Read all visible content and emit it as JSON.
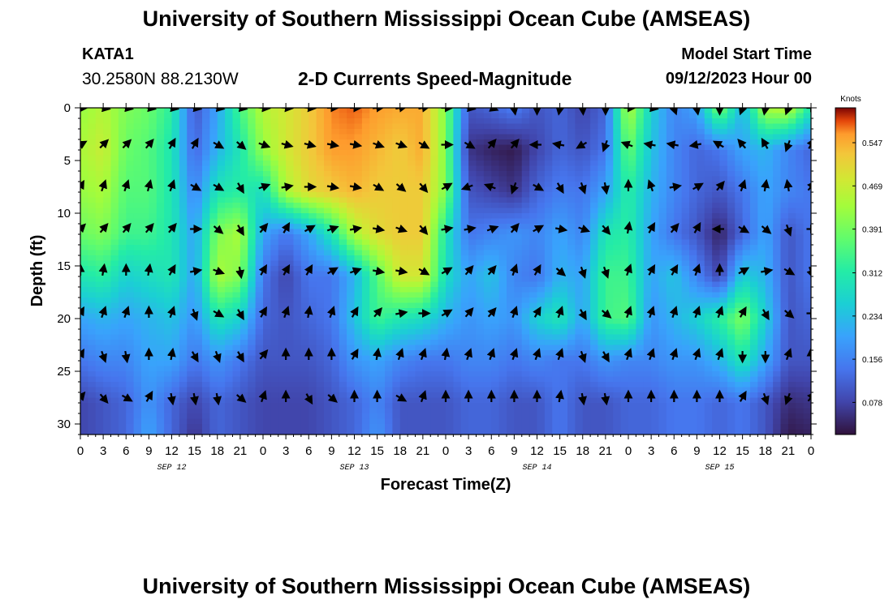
{
  "header": {
    "title": "University of Southern Mississippi Ocean Cube (AMSEAS)",
    "station_id": "KATA1",
    "station_coords": "30.2580N  88.2130W",
    "plot_title": "2-D Currents Speed-Magnitude",
    "model_start_label": "Model Start Time",
    "model_start_time": "09/12/2023 Hour 00"
  },
  "footer": {
    "title": "University of Southern Mississippi Ocean Cube (AMSEAS)"
  },
  "chart_data": {
    "type": "heatmap",
    "title": "2-D Currents Speed-Magnitude",
    "xlabel": "Forecast Time(Z)",
    "ylabel": "Depth (ft)",
    "xlim": [
      0,
      96
    ],
    "ylim": [
      0,
      31
    ],
    "x_tick_values": [
      0,
      3,
      6,
      9,
      12,
      15,
      18,
      21,
      24,
      27,
      30,
      33,
      36,
      39,
      42,
      45,
      48,
      51,
      54,
      57,
      60,
      63,
      66,
      69,
      72,
      75,
      78,
      81,
      84,
      87,
      90,
      93,
      96
    ],
    "x_tick_labels": [
      "0",
      "3",
      "6",
      "9",
      "12",
      "15",
      "18",
      "21",
      "0",
      "3",
      "6",
      "9",
      "12",
      "15",
      "18",
      "21",
      "0",
      "3",
      "6",
      "9",
      "12",
      "15",
      "18",
      "21",
      "0",
      "3",
      "6",
      "9",
      "12",
      "15",
      "18",
      "21",
      "0"
    ],
    "date_labels": [
      {
        "label": "SEP 12",
        "x": 12
      },
      {
        "label": "SEP 13",
        "x": 36
      },
      {
        "label": "SEP 14",
        "x": 60
      },
      {
        "label": "SEP 15",
        "x": 84
      }
    ],
    "y_ticks": [
      0,
      5,
      10,
      15,
      20,
      25,
      30
    ],
    "colorbar": {
      "label": "Knots",
      "range": [
        0.02,
        0.61
      ],
      "ticks": [
        0.078,
        0.156,
        0.234,
        0.312,
        0.391,
        0.469,
        0.547
      ],
      "tick_labels": [
        "0.078",
        "0.156",
        "0.234",
        "0.312",
        "0.391",
        "0.469",
        "0.547"
      ]
    },
    "grid_times": [
      0,
      3,
      6,
      9,
      12,
      15,
      18,
      21,
      24,
      27,
      30,
      33,
      36,
      39,
      42,
      45,
      48,
      51,
      54,
      57,
      60,
      63,
      66,
      69,
      72,
      75,
      78,
      81,
      84,
      87,
      90,
      93,
      96
    ],
    "grid_depths": [
      0,
      4,
      8,
      12,
      16,
      20,
      24,
      28,
      31
    ],
    "speed_knots": [
      [
        0.42,
        0.45,
        0.4,
        0.38,
        0.32,
        0.1,
        0.2,
        0.35,
        0.45,
        0.48,
        0.52,
        0.57,
        0.58,
        0.56,
        0.55,
        0.55,
        0.4,
        0.1,
        0.12,
        0.15,
        0.1,
        0.12,
        0.08,
        0.12,
        0.45,
        0.26,
        0.16,
        0.2,
        0.4,
        0.22,
        0.44,
        0.46,
        0.3
      ],
      [
        0.44,
        0.47,
        0.38,
        0.36,
        0.3,
        0.12,
        0.22,
        0.3,
        0.42,
        0.48,
        0.52,
        0.56,
        0.56,
        0.54,
        0.52,
        0.55,
        0.4,
        0.06,
        0.04,
        0.03,
        0.08,
        0.12,
        0.1,
        0.14,
        0.38,
        0.24,
        0.16,
        0.12,
        0.14,
        0.2,
        0.22,
        0.16,
        0.12
      ],
      [
        0.42,
        0.44,
        0.36,
        0.36,
        0.3,
        0.16,
        0.3,
        0.32,
        0.28,
        0.44,
        0.5,
        0.52,
        0.54,
        0.52,
        0.52,
        0.52,
        0.4,
        0.1,
        0.08,
        0.06,
        0.12,
        0.15,
        0.14,
        0.2,
        0.32,
        0.22,
        0.16,
        0.12,
        0.1,
        0.14,
        0.2,
        0.16,
        0.14
      ],
      [
        0.38,
        0.4,
        0.34,
        0.34,
        0.3,
        0.2,
        0.4,
        0.44,
        0.2,
        0.14,
        0.2,
        0.3,
        0.44,
        0.5,
        0.52,
        0.52,
        0.3,
        0.14,
        0.16,
        0.18,
        0.16,
        0.2,
        0.16,
        0.3,
        0.32,
        0.2,
        0.14,
        0.1,
        0.04,
        0.12,
        0.2,
        0.1,
        0.14
      ],
      [
        0.3,
        0.32,
        0.26,
        0.28,
        0.3,
        0.2,
        0.44,
        0.4,
        0.14,
        0.08,
        0.14,
        0.14,
        0.22,
        0.36,
        0.48,
        0.48,
        0.28,
        0.2,
        0.24,
        0.16,
        0.14,
        0.22,
        0.2,
        0.34,
        0.34,
        0.2,
        0.24,
        0.16,
        0.08,
        0.26,
        0.22,
        0.1,
        0.14
      ],
      [
        0.2,
        0.22,
        0.2,
        0.22,
        0.24,
        0.18,
        0.3,
        0.26,
        0.12,
        0.1,
        0.12,
        0.14,
        0.24,
        0.34,
        0.3,
        0.28,
        0.22,
        0.18,
        0.2,
        0.18,
        0.26,
        0.3,
        0.2,
        0.34,
        0.36,
        0.18,
        0.22,
        0.26,
        0.32,
        0.4,
        0.26,
        0.1,
        0.12
      ],
      [
        0.14,
        0.16,
        0.16,
        0.2,
        0.2,
        0.14,
        0.18,
        0.14,
        0.1,
        0.1,
        0.1,
        0.12,
        0.18,
        0.2,
        0.16,
        0.14,
        0.14,
        0.16,
        0.16,
        0.14,
        0.16,
        0.14,
        0.14,
        0.18,
        0.16,
        0.16,
        0.18,
        0.18,
        0.22,
        0.3,
        0.2,
        0.1,
        0.1
      ],
      [
        0.08,
        0.1,
        0.12,
        0.18,
        0.12,
        0.08,
        0.12,
        0.1,
        0.08,
        0.08,
        0.08,
        0.1,
        0.12,
        0.16,
        0.1,
        0.1,
        0.1,
        0.12,
        0.12,
        0.1,
        0.1,
        0.14,
        0.1,
        0.1,
        0.12,
        0.12,
        0.14,
        0.14,
        0.12,
        0.14,
        0.1,
        0.05,
        0.06
      ],
      [
        0.08,
        0.1,
        0.12,
        0.2,
        0.12,
        0.06,
        0.12,
        0.1,
        0.08,
        0.08,
        0.08,
        0.1,
        0.12,
        0.18,
        0.1,
        0.1,
        0.1,
        0.12,
        0.12,
        0.1,
        0.1,
        0.14,
        0.1,
        0.1,
        0.12,
        0.12,
        0.14,
        0.14,
        0.12,
        0.14,
        0.1,
        0.03,
        0.04
      ]
    ],
    "vector_depths": [
      0,
      3.5,
      7.5,
      11.5,
      15.5,
      19.5,
      23.5,
      27.5
    ],
    "vector_directions_deg": [
      [
        90,
        100,
        100,
        100,
        100,
        100,
        100,
        100,
        95,
        95,
        95,
        90,
        90,
        85,
        80,
        80,
        90,
        100,
        110,
        170,
        180,
        190,
        175,
        180,
        90,
        100,
        160,
        170,
        180,
        200,
        190,
        200,
        90
      ],
      [
        60,
        45,
        45,
        40,
        30,
        30,
        120,
        130,
        110,
        105,
        105,
        100,
        100,
        110,
        110,
        120,
        90,
        120,
        40,
        40,
        270,
        280,
        240,
        200,
        290,
        280,
        280,
        260,
        300,
        320,
        330,
        200,
        30
      ],
      [
        30,
        20,
        20,
        15,
        20,
        120,
        120,
        150,
        70,
        80,
        90,
        100,
        100,
        120,
        130,
        140,
        60,
        250,
        290,
        200,
        120,
        150,
        160,
        170,
        0,
        340,
        80,
        60,
        40,
        20,
        10,
        350,
        40
      ],
      [
        45,
        40,
        40,
        40,
        40,
        90,
        130,
        150,
        40,
        30,
        60,
        70,
        80,
        100,
        110,
        140,
        80,
        80,
        70,
        40,
        60,
        100,
        110,
        140,
        10,
        30,
        40,
        30,
        270,
        120,
        130,
        160,
        90
      ],
      [
        0,
        10,
        0,
        10,
        30,
        80,
        110,
        170,
        30,
        30,
        30,
        60,
        70,
        100,
        100,
        120,
        60,
        40,
        40,
        20,
        30,
        130,
        160,
        160,
        20,
        30,
        30,
        20,
        0,
        60,
        80,
        120,
        160
      ],
      [
        30,
        20,
        20,
        0,
        20,
        160,
        120,
        150,
        30,
        20,
        10,
        20,
        30,
        40,
        80,
        90,
        60,
        40,
        40,
        20,
        30,
        20,
        150,
        130,
        20,
        20,
        20,
        20,
        20,
        30,
        150,
        130,
        90
      ],
      [
        30,
        160,
        170,
        0,
        10,
        150,
        160,
        150,
        40,
        0,
        0,
        0,
        30,
        10,
        20,
        20,
        10,
        20,
        20,
        20,
        20,
        20,
        160,
        150,
        20,
        20,
        20,
        20,
        20,
        180,
        180,
        20,
        0
      ],
      [
        40,
        140,
        120,
        30,
        170,
        170,
        170,
        130,
        20,
        0,
        150,
        130,
        0,
        0,
        120,
        20,
        0,
        0,
        0,
        0,
        0,
        10,
        170,
        170,
        0,
        0,
        0,
        0,
        0,
        30,
        160,
        200,
        40
      ]
    ]
  }
}
